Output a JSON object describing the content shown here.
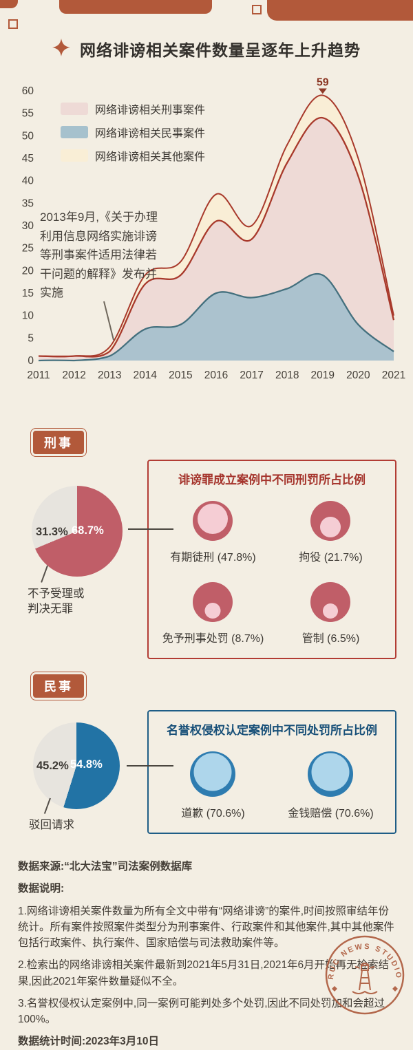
{
  "header": {
    "title": "网络诽谤相关案件数量呈逐年上升趋势"
  },
  "chart_data": [
    {
      "type": "area",
      "title": "网络诽谤相关案件数量呈逐年上升趋势",
      "x": [
        2011,
        2012,
        2013,
        2014,
        2015,
        2016,
        2017,
        2018,
        2019,
        2020,
        2021
      ],
      "ylim": [
        0,
        60
      ],
      "ytick_step": 5,
      "grid": false,
      "legend_position": "top-left",
      "series": [
        {
          "name": "网络诽谤相关刑事案件",
          "values": [
            1,
            1,
            2,
            17,
            19,
            31,
            27,
            44,
            54,
            41,
            9
          ],
          "fill": "#eedad6",
          "stroke": "#a8392b"
        },
        {
          "name": "网络诽谤相关民事案件",
          "values": [
            0,
            0,
            1,
            7,
            8,
            15,
            14,
            16,
            19,
            8,
            2
          ],
          "fill": "#a6c1cd",
          "stroke": "#44707e"
        },
        {
          "name": "网络诽谤相关其他案件",
          "values": [
            0,
            0,
            1,
            2,
            3,
            6,
            3,
            4,
            5,
            4,
            1
          ],
          "fill": "#f9eed6",
          "stroke": "#a8392b",
          "note": "stacked on top of criminal series"
        }
      ],
      "peak_annotation": {
        "x": 2019,
        "value": 59,
        "label": "59"
      },
      "annotation_text": "2013年9月,《关于办理利用信息网络实施诽谤等刑事案件适用法律若干问题的解释》发布并实施"
    },
    {
      "type": "pie",
      "title": "刑事",
      "categories": [
        "诽谤罪成立",
        "不予受理或判决无罪"
      ],
      "values": [
        68.7,
        31.3
      ]
    },
    {
      "type": "pie",
      "title": "民事",
      "categories": [
        "名誉权侵权认定",
        "驳回请求"
      ],
      "values": [
        54.8,
        45.2
      ]
    }
  ],
  "criminal": {
    "badge": "刑事",
    "pie": {
      "main_pct": 68.7,
      "main_label": "68.7%",
      "rest_label": "31.3%",
      "caption": "不予受理或判决无罪",
      "main_color": "#c05e68",
      "rest_color": "#e7e4de"
    },
    "box": {
      "title": "诽谤罪成立案例中不同刑罚所占比例",
      "items": [
        {
          "label": "有期徒刑 (47.8%)",
          "pct": 47.8
        },
        {
          "label": "拘役 (21.7%)",
          "pct": 21.7
        },
        {
          "label": "免予刑事处罚 (8.7%)",
          "pct": 8.7
        },
        {
          "label": "管制 (6.5%)",
          "pct": 6.5
        }
      ]
    }
  },
  "civil": {
    "badge": "民事",
    "pie": {
      "main_pct": 54.8,
      "main_label": "54.8%",
      "rest_label": "45.2%",
      "caption": "驳回请求",
      "main_color": "#2273a5",
      "rest_color": "#e7e4de"
    },
    "box": {
      "title": "名誉权侵权认定案例中不同处罚所占比例",
      "items": [
        {
          "label": "道歉 (70.6%)",
          "pct": 70.6
        },
        {
          "label": "金钱赔偿 (70.6%)",
          "pct": 70.6
        }
      ]
    }
  },
  "footer": {
    "source": "数据来源:“北大法宝”司法案例数据库",
    "notes_label": "数据说明:",
    "notes": [
      "1.网络诽谤相关案件数量为所有全文中带有“网络诽谤”的案件,时间按照审结年份统计。所有案件按照案件类型分为刑事案件、行政案件和其他案件,其中其他案件包括行政案件、执行案件、国家赔偿与司法救助案件等。",
      "2.检索出的网络诽谤相关案件最新到2021年5月31日,2021年6月开始再无检索结果,因此2021年案件数量疑似不全。",
      "3.名誉权侵权认定案例中,同一案例可能判处多个处罚,因此不同处罚加和会超过100%。"
    ],
    "stat_time": "数据统计时间:2023年3月10日"
  },
  "stamp": {
    "text": "RUC NEWS STUDIO"
  }
}
